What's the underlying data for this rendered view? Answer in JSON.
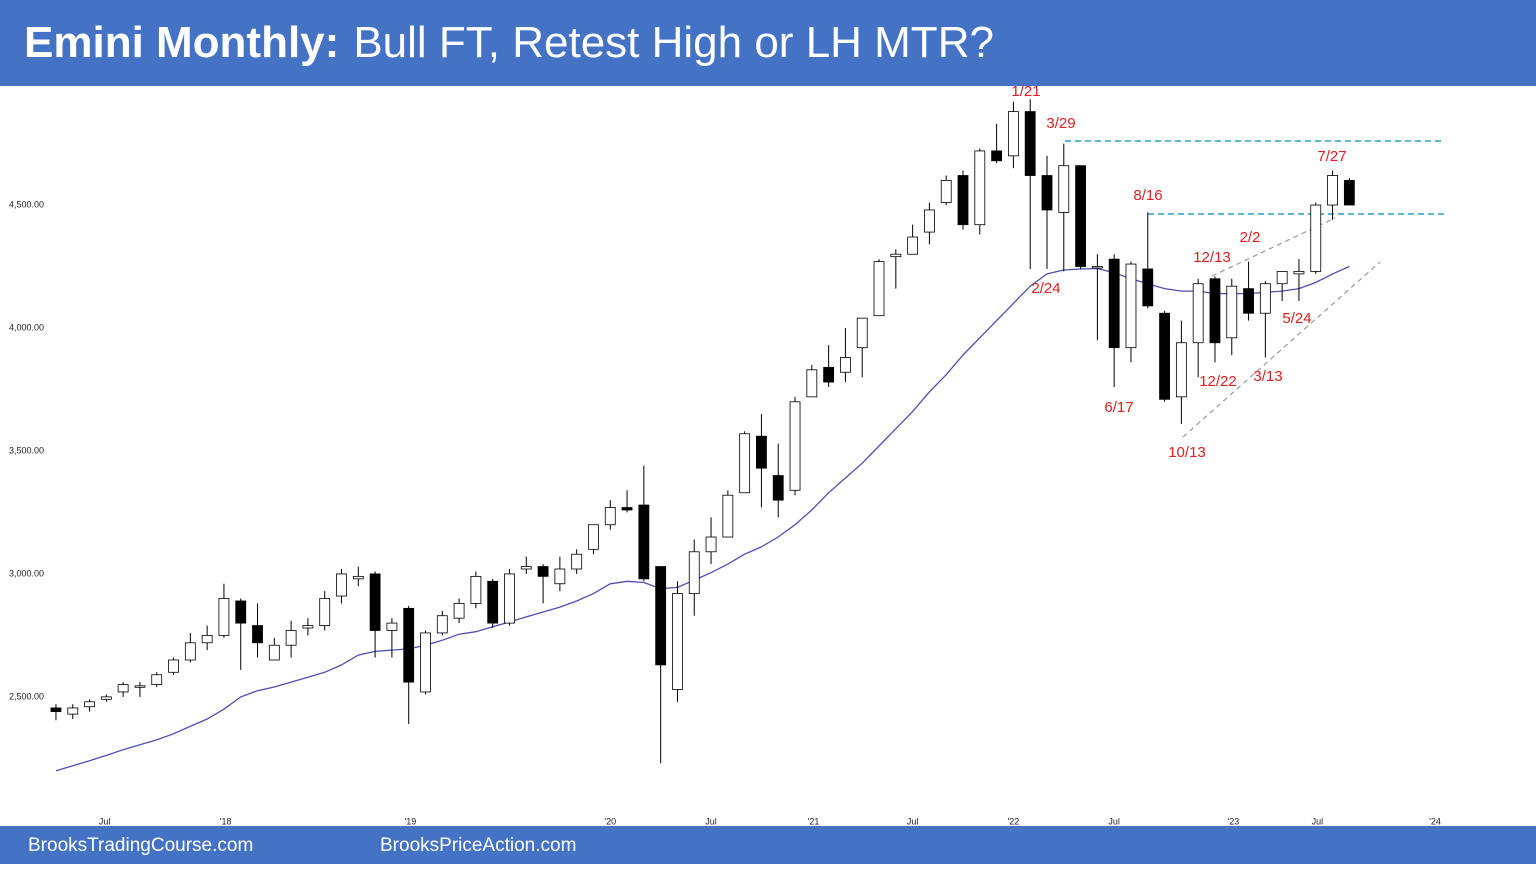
{
  "chart_data": {
    "type": "candlestick",
    "title_lead": "Emini Monthly:",
    "title": "Bull FT, Retest High or LH MTR?",
    "footer": [
      "BrooksTradingCourse.com",
      "BrooksPriceAction.com"
    ],
    "up_color": "#ffffff",
    "down_color": "#000000",
    "open": [
      2455,
      2430,
      2460,
      2490,
      2520,
      2540,
      2550,
      2600,
      2650,
      2720,
      2750,
      2890,
      2790,
      2650,
      2710,
      2780,
      2790,
      2910,
      2980,
      3000,
      2770,
      2860,
      2520,
      2760,
      2820,
      2880,
      2970,
      2800,
      3020,
      3030,
      2960,
      3020,
      3100,
      3200,
      3270,
      3280,
      3030,
      2530,
      2920,
      3090,
      3150,
      3330,
      3560,
      3400,
      3340,
      3720,
      3840,
      3820,
      3920,
      4050,
      4290,
      4300,
      4390,
      4510,
      4620,
      4420,
      4720,
      4700,
      4880,
      4620,
      4470,
      4660,
      4250,
      4280,
      3920,
      4240,
      4060,
      3720,
      3940,
      4200,
      3960,
      4160,
      4060,
      4180,
      4220,
      4230,
      4500,
      4600
    ],
    "high": [
      2470,
      2470,
      2490,
      2510,
      2560,
      2560,
      2600,
      2660,
      2760,
      2790,
      2960,
      2900,
      2880,
      2740,
      2810,
      2820,
      2930,
      3020,
      3030,
      3010,
      2820,
      2870,
      2770,
      2850,
      2900,
      3010,
      2980,
      3020,
      3070,
      3040,
      3070,
      3100,
      3200,
      3300,
      3340,
      3440,
      3030,
      2970,
      3140,
      3230,
      3340,
      3580,
      3650,
      3530,
      3720,
      3850,
      3930,
      4000,
      4040,
      4280,
      4320,
      4420,
      4510,
      4620,
      4640,
      4730,
      4830,
      4920,
      4930,
      4700,
      4750,
      4660,
      4300,
      4300,
      4270,
      4470,
      4070,
      4030,
      4200,
      4210,
      4200,
      4270,
      4190,
      4230,
      4280,
      4510,
      4640,
      4610
    ],
    "low": [
      2405,
      2410,
      2440,
      2480,
      2500,
      2500,
      2540,
      2590,
      2640,
      2690,
      2740,
      2610,
      2660,
      2650,
      2660,
      2750,
      2770,
      2880,
      2950,
      2660,
      2660,
      2390,
      2510,
      2750,
      2800,
      2860,
      2780,
      2790,
      3000,
      2880,
      2930,
      3000,
      3080,
      3180,
      3250,
      2970,
      2230,
      2480,
      2830,
      3040,
      3150,
      3330,
      3270,
      3230,
      3320,
      3720,
      3760,
      3780,
      3800,
      4050,
      4160,
      4300,
      4340,
      4500,
      4400,
      4380,
      4670,
      4650,
      4240,
      4240,
      4230,
      4240,
      3950,
      3760,
      3860,
      4080,
      3700,
      3610,
      3800,
      3860,
      3890,
      4030,
      3880,
      4110,
      4110,
      4220,
      4440,
      4500
    ],
    "close": [
      2440,
      2455,
      2480,
      2500,
      2550,
      2545,
      2590,
      2650,
      2720,
      2750,
      2900,
      2800,
      2720,
      2710,
      2770,
      2790,
      2900,
      3000,
      2990,
      2770,
      2800,
      2560,
      2760,
      2830,
      2880,
      2990,
      2800,
      3000,
      3030,
      2990,
      3020,
      3080,
      3200,
      3270,
      3260,
      2980,
      2630,
      2920,
      3090,
      3150,
      3320,
      3570,
      3430,
      3300,
      3700,
      3830,
      3780,
      3880,
      4040,
      4270,
      4300,
      4370,
      4480,
      4600,
      4420,
      4720,
      4680,
      4880,
      4620,
      4480,
      4660,
      4250,
      4250,
      3920,
      4260,
      4090,
      3710,
      3940,
      4180,
      3940,
      4170,
      4060,
      4180,
      4230,
      4230,
      4500,
      4620,
      4500
    ],
    "moving_average": {
      "color": "#4f4fb0",
      "values": [
        2200,
        2220,
        2240,
        2262,
        2285,
        2305,
        2325,
        2350,
        2380,
        2410,
        2450,
        2500,
        2525,
        2540,
        2560,
        2580,
        2600,
        2630,
        2670,
        2685,
        2690,
        2695,
        2710,
        2730,
        2755,
        2765,
        2785,
        2805,
        2825,
        2845,
        2865,
        2890,
        2920,
        2960,
        2970,
        2965,
        2940,
        2945,
        2975,
        3005,
        3040,
        3080,
        3110,
        3150,
        3200,
        3260,
        3330,
        3390,
        3450,
        3520,
        3590,
        3660,
        3740,
        3810,
        3890,
        3960,
        4030,
        4100,
        4170,
        4220,
        4236,
        4240,
        4242,
        4225,
        4200,
        4180,
        4160,
        4150,
        4150,
        4140,
        4140,
        4140,
        4145,
        4150,
        4160,
        4185,
        4220,
        4250
      ]
    },
    "annotations": [
      "1/21",
      "3/29",
      "2/24",
      "7/27",
      "8/16",
      "2/2",
      "12/13",
      "5/24",
      "6/17",
      "12/22",
      "3/13",
      "10/13"
    ],
    "annotation_color": "#e02020",
    "xlim": [
      -0.95,
      84.6
    ],
    "xticks": [
      {
        "value": 2.9,
        "label": "Jul"
      },
      {
        "value": 10.1,
        "label": "'18"
      },
      {
        "value": 21.1,
        "label": "'19"
      },
      {
        "value": 33.0,
        "label": "'20"
      },
      {
        "value": 39.0,
        "label": "Jul"
      },
      {
        "value": 45.1,
        "label": "'21"
      },
      {
        "value": 51.0,
        "label": "Jul"
      },
      {
        "value": 57.0,
        "label": "'22"
      },
      {
        "value": 63.0,
        "label": "Jul"
      },
      {
        "value": 70.1,
        "label": "'23"
      },
      {
        "value": 75.1,
        "label": "Jul"
      },
      {
        "value": 82.1,
        "label": "'24"
      }
    ],
    "ylim": [
      2040,
      4984
    ],
    "yticks": [
      {
        "value": 2500,
        "label": "2,500.00"
      },
      {
        "value": 3000,
        "label": "3,000.00"
      },
      {
        "value": 3500,
        "label": "3,500.00"
      },
      {
        "value": 4000,
        "label": "4,000.00"
      },
      {
        "value": 4500,
        "label": "4,500.00"
      }
    ]
  }
}
